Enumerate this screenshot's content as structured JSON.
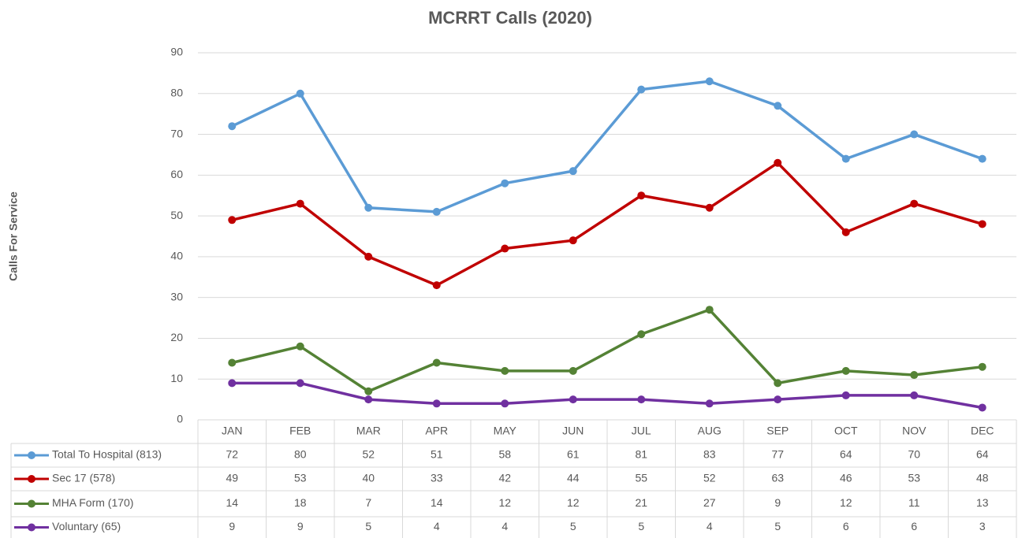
{
  "chart_data": {
    "type": "line",
    "title": "MCRRT Calls (2020)",
    "y_label": "Calls For Service",
    "categories": [
      "JAN",
      "FEB",
      "MAR",
      "APR",
      "MAY",
      "JUN",
      "JUL",
      "AUG",
      "SEP",
      "OCT",
      "NOV",
      "DEC"
    ],
    "series": [
      {
        "name": "Total To Hospital (813)",
        "color": "#5b9bd5",
        "values": [
          72,
          80,
          52,
          51,
          58,
          61,
          81,
          83,
          77,
          64,
          70,
          64
        ]
      },
      {
        "name": "Sec 17  (578)",
        "color": "#c00000",
        "values": [
          49,
          53,
          40,
          33,
          42,
          44,
          55,
          52,
          63,
          46,
          53,
          48
        ]
      },
      {
        "name": "MHA Form (170)",
        "color": "#548235",
        "values": [
          14,
          18,
          7,
          14,
          12,
          12,
          21,
          27,
          9,
          12,
          11,
          13
        ]
      },
      {
        "name": "Voluntary (65)",
        "color": "#7030a0",
        "values": [
          9,
          9,
          5,
          4,
          4,
          5,
          5,
          4,
          5,
          6,
          6,
          3
        ]
      }
    ],
    "ylim": [
      0,
      90
    ],
    "yticks": [
      0,
      10,
      20,
      30,
      40,
      50,
      60,
      70,
      80,
      90
    ],
    "grid": true
  }
}
